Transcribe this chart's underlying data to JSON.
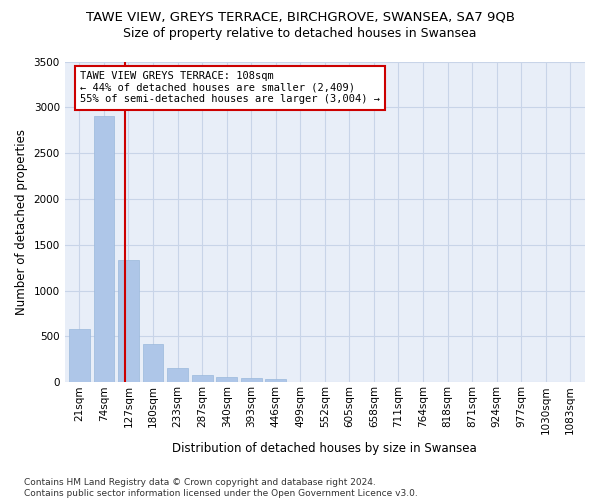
{
  "title1": "TAWE VIEW, GREYS TERRACE, BIRCHGROVE, SWANSEA, SA7 9QB",
  "title2": "Size of property relative to detached houses in Swansea",
  "xlabel": "Distribution of detached houses by size in Swansea",
  "ylabel": "Number of detached properties",
  "categories": [
    "21sqm",
    "74sqm",
    "127sqm",
    "180sqm",
    "233sqm",
    "287sqm",
    "340sqm",
    "393sqm",
    "446sqm",
    "499sqm",
    "552sqm",
    "605sqm",
    "658sqm",
    "711sqm",
    "764sqm",
    "818sqm",
    "871sqm",
    "924sqm",
    "977sqm",
    "1030sqm",
    "1083sqm"
  ],
  "values": [
    580,
    2900,
    1330,
    415,
    160,
    80,
    55,
    45,
    38,
    0,
    0,
    0,
    0,
    0,
    0,
    0,
    0,
    0,
    0,
    0,
    0
  ],
  "bar_color": "#aec6e8",
  "bar_edge_color": "#9ab8dc",
  "vline_color": "#cc0000",
  "annotation_text": "TAWE VIEW GREYS TERRACE: 108sqm\n← 44% of detached houses are smaller (2,409)\n55% of semi-detached houses are larger (3,004) →",
  "annotation_box_color": "#cc0000",
  "ylim": [
    0,
    3500
  ],
  "yticks": [
    0,
    500,
    1000,
    1500,
    2000,
    2500,
    3000,
    3500
  ],
  "grid_color": "#c8d4e8",
  "bg_color": "#e8eef8",
  "footnote": "Contains HM Land Registry data © Crown copyright and database right 2024.\nContains public sector information licensed under the Open Government Licence v3.0.",
  "title1_fontsize": 9.5,
  "title2_fontsize": 9,
  "xlabel_fontsize": 8.5,
  "ylabel_fontsize": 8.5,
  "tick_fontsize": 7.5,
  "annot_fontsize": 7.5,
  "footnote_fontsize": 6.5
}
